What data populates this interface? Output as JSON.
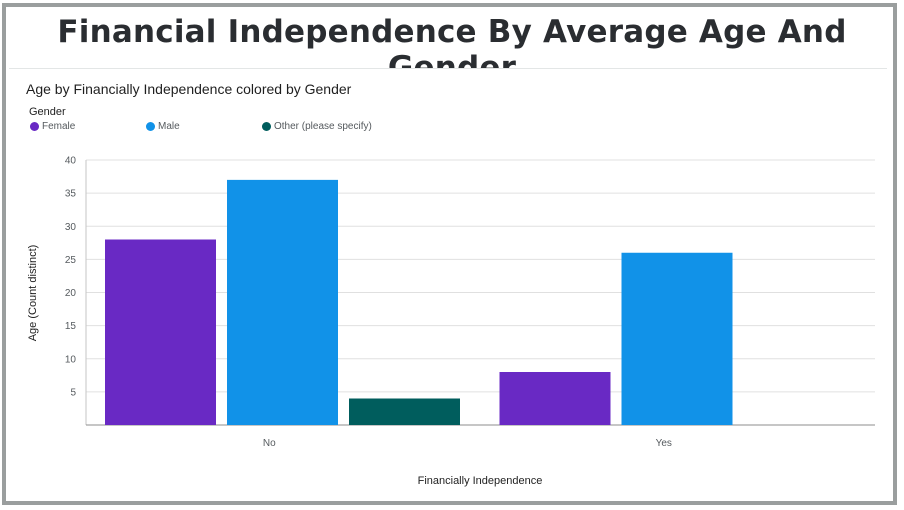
{
  "title": "Financial Independence By Average Age And Gender",
  "chart_data": {
    "type": "bar",
    "title": "Age by Financially Independence colored by Gender",
    "xlabel": "Financially Independence",
    "ylabel": "Age (Count distinct)",
    "legend_title": "Gender",
    "legend_position": "top-left",
    "grid": true,
    "ylim": [
      0,
      40
    ],
    "yticks": [
      "5",
      "10",
      "15",
      "20",
      "25",
      "30",
      "35",
      "40"
    ],
    "categories": [
      "No",
      "Yes"
    ],
    "series": [
      {
        "name": "Female",
        "color": "#6929c4",
        "values": [
          28,
          8
        ]
      },
      {
        "name": "Male",
        "color": "#1192e8",
        "values": [
          37,
          26
        ]
      },
      {
        "name": "Other (please specify)",
        "color": "#005d5d",
        "values": [
          4,
          null
        ]
      }
    ]
  }
}
